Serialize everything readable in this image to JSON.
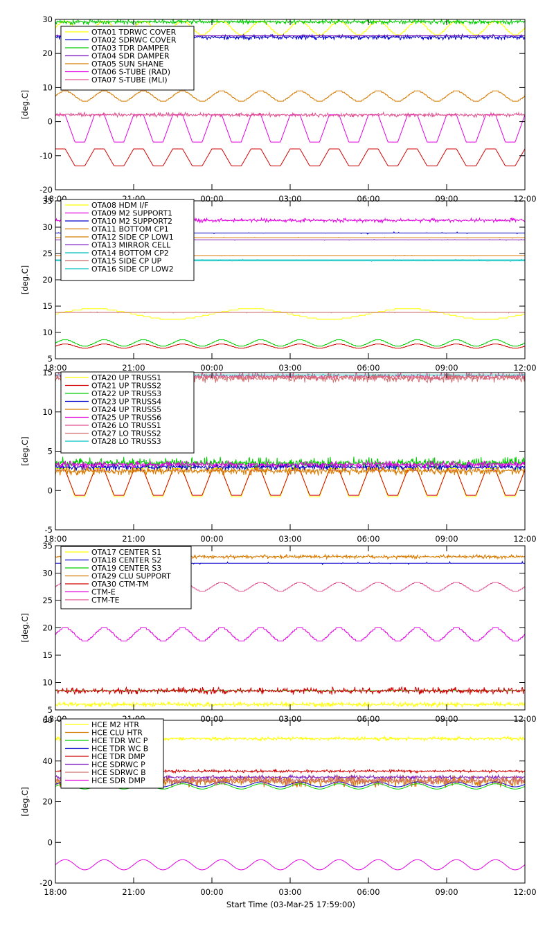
{
  "figure": {
    "xlabel": "Start Time (03-Mar-25 17:59:00)"
  },
  "colors": {
    "yellow": "#ffff00",
    "red": "#d00000",
    "green": "#00cc00",
    "blue": "#0000cc",
    "orange": "#d87a00",
    "magenta": "#e000e0",
    "pink": "#e05090",
    "purple": "#8020c0",
    "cyan": "#00c0c0",
    "salmon": "#d07070"
  },
  "chart_data": [
    {
      "type": "line",
      "ylabel": "[deg.C]",
      "ylim": [
        -20,
        30
      ],
      "yticks": [
        -20,
        -10,
        0,
        10,
        20,
        30
      ],
      "xticks": [
        "18:00",
        "21:00",
        "00:00",
        "03:00",
        "06:00",
        "09:00",
        "12:00"
      ],
      "xrange_hours": [
        0,
        18
      ],
      "legend_position": "top-left",
      "series": [
        {
          "name": "OTA01 TDRWC COVER",
          "color": "yellow",
          "base": 27.5,
          "amp": 2.0,
          "period": 1.5,
          "shape": "steps"
        },
        {
          "name": "OTA02 SDRWC COVER",
          "color": "blue",
          "base": 24.8,
          "amp": 0.8,
          "period": 0.7,
          "shape": "noise"
        },
        {
          "name": "OTA03 TDR DAMPER",
          "color": "green",
          "base": 29.3,
          "amp": 0.8,
          "period": 0.3,
          "shape": "noise"
        },
        {
          "name": "OTA04 SDR DAMPER",
          "color": "purple",
          "base": 25.2,
          "amp": 0.3,
          "period": 1.0,
          "shape": "flat"
        },
        {
          "name": "OTA05 SUN SHANE",
          "color": "orange",
          "base": 7.5,
          "amp": 1.5,
          "period": 1.5,
          "shape": "steps"
        },
        {
          "name": "OTA06 S-TUBE (RAD)",
          "color": "magenta",
          "base": -2.0,
          "amp": 4.0,
          "period": 1.5,
          "shape": "trap"
        },
        {
          "name": "OTA07 S-TUBE (MLI)",
          "color": "pink",
          "base": 2.0,
          "amp": 0.7,
          "period": 1.5,
          "shape": "noise"
        },
        {
          "name": "",
          "color": "red",
          "base": -10.5,
          "amp": 2.5,
          "period": 1.5,
          "shape": "trap"
        }
      ]
    },
    {
      "type": "line",
      "ylabel": "[deg.C]",
      "ylim": [
        5,
        35
      ],
      "yticks": [
        5,
        10,
        15,
        20,
        25,
        30,
        35
      ],
      "xticks": [
        "18:00",
        "21:00",
        "00:00",
        "03:00",
        "06:00",
        "09:00",
        "12:00"
      ],
      "xrange_hours": [
        0,
        18
      ],
      "legend_position": "top-left",
      "series": [
        {
          "name": "OTA08 HDM I/F",
          "color": "yellow",
          "base": 13.5,
          "amp": 1.0,
          "period": 6.0,
          "shape": "steps"
        },
        {
          "name": "OTA09 M2 SUPPORT1",
          "color": "magenta",
          "base": 31.3,
          "amp": 0.4,
          "period": 0.5,
          "shape": "noise"
        },
        {
          "name": "OTA10 M2 SUPPORT2",
          "color": "blue",
          "base": 28.9,
          "amp": 0.2,
          "period": 1.0,
          "shape": "flat"
        },
        {
          "name": "OTA11 BOTTOM CP1",
          "color": "orange",
          "base": 28.0,
          "amp": 0.1,
          "period": 1.0,
          "shape": "flat"
        },
        {
          "name": "OTA12 SIDE CP LOW1",
          "color": "orange",
          "base": 24.6,
          "amp": 0.1,
          "period": 1.0,
          "shape": "flat"
        },
        {
          "name": "OTA13 MIRROR CELL",
          "color": "purple",
          "base": 27.6,
          "amp": 0.1,
          "period": 1.0,
          "shape": "flat"
        },
        {
          "name": "OTA14 BOTTOM CP2",
          "color": "cyan",
          "base": 23.6,
          "amp": 0.1,
          "period": 1.0,
          "shape": "flat"
        },
        {
          "name": "OTA15 SIDE CP UP",
          "color": "salmon",
          "base": 13.8,
          "amp": 0.1,
          "period": 1.0,
          "shape": "flat"
        },
        {
          "name": "OTA16 SIDE CP LOW2",
          "color": "cyan",
          "base": 23.8,
          "amp": 0.1,
          "period": 1.0,
          "shape": "flat"
        },
        {
          "name": "",
          "color": "green",
          "base": 8.0,
          "amp": 0.6,
          "period": 1.5,
          "shape": "steps"
        },
        {
          "name": "",
          "color": "red",
          "base": 7.4,
          "amp": 0.4,
          "period": 1.5,
          "shape": "steps"
        }
      ]
    },
    {
      "type": "line",
      "ylabel": "[deg.C]",
      "ylim": [
        -5,
        15
      ],
      "yticks": [
        -5,
        0,
        5,
        10,
        15
      ],
      "xticks": [
        "18:00",
        "21:00",
        "00:00",
        "03:00",
        "06:00",
        "09:00",
        "12:00"
      ],
      "xrange_hours": [
        0,
        18
      ],
      "legend_position": "top-left",
      "series": [
        {
          "name": "OTA20 UP TRUSS1",
          "color": "yellow",
          "base": 1.0,
          "amp": 1.8,
          "period": 1.5,
          "shape": "trap"
        },
        {
          "name": "OTA21 UP TRUSS2",
          "color": "red",
          "base": 1.0,
          "amp": 1.6,
          "period": 1.5,
          "shape": "trap"
        },
        {
          "name": "OTA22 UP TRUSS3",
          "color": "green",
          "base": 3.5,
          "amp": 0.8,
          "period": 0.5,
          "shape": "noise"
        },
        {
          "name": "OTA23 UP TRUSS4",
          "color": "blue",
          "base": 3.0,
          "amp": 0.5,
          "period": 0.5,
          "shape": "noise"
        },
        {
          "name": "OTA24 UP TRUSS5",
          "color": "orange",
          "base": 2.5,
          "amp": 0.6,
          "period": 0.5,
          "shape": "noise"
        },
        {
          "name": "OTA25 UP TRUSS6",
          "color": "magenta",
          "base": 3.3,
          "amp": 0.5,
          "period": 0.3,
          "shape": "noise"
        },
        {
          "name": "OTA26 LO TRUSS1",
          "color": "pink",
          "base": 14.5,
          "amp": 0.5,
          "period": 0.4,
          "shape": "noise"
        },
        {
          "name": "OTA27 LO TRUSS2",
          "color": "salmon",
          "base": 14.3,
          "amp": 0.6,
          "period": 0.3,
          "shape": "noise"
        },
        {
          "name": "OTA28 LO TRUSS3",
          "color": "cyan",
          "base": 14.7,
          "amp": 0.1,
          "period": 1.0,
          "shape": "flat"
        }
      ]
    },
    {
      "type": "line",
      "ylabel": "[deg.C]",
      "ylim": [
        5,
        35
      ],
      "yticks": [
        5,
        10,
        15,
        20,
        25,
        30,
        35
      ],
      "xticks": [
        "18:00",
        "21:00",
        "00:00",
        "03:00",
        "06:00",
        "09:00",
        "12:00"
      ],
      "xrange_hours": [
        0,
        18
      ],
      "legend_position": "top-left",
      "series": [
        {
          "name": "OTA17 CENTER S1",
          "color": "yellow",
          "base": 6.0,
          "amp": 0.5,
          "period": 0.8,
          "shape": "noise"
        },
        {
          "name": "OTA18 CENTER S2",
          "color": "blue",
          "base": 31.8,
          "amp": 0.3,
          "period": 1.0,
          "shape": "flat"
        },
        {
          "name": "OTA19 CENTER S3",
          "color": "green",
          "base": 8.5,
          "amp": 0.1,
          "period": 1.0,
          "shape": "flat"
        },
        {
          "name": "OTA29 CLU SUPPORT",
          "color": "orange",
          "base": 33.0,
          "amp": 0.4,
          "period": 1.0,
          "shape": "noise"
        },
        {
          "name": "OTA30 CTM-TM",
          "color": "red",
          "base": 8.5,
          "amp": 0.7,
          "period": 0.8,
          "shape": "noise"
        },
        {
          "name": "CTM-E",
          "color": "magenta",
          "base": 18.8,
          "amp": 1.2,
          "period": 1.5,
          "shape": "steps"
        },
        {
          "name": "CTM-TE",
          "color": "pink",
          "base": 27.5,
          "amp": 0.8,
          "period": 1.5,
          "shape": "steps"
        }
      ]
    },
    {
      "type": "line",
      "ylabel": "[deg.C]",
      "ylim": [
        -20,
        60
      ],
      "yticks": [
        -20,
        0,
        20,
        40,
        60
      ],
      "xticks": [
        "18:00",
        "21:00",
        "00:00",
        "03:00",
        "06:00",
        "09:00",
        "12:00"
      ],
      "xrange_hours": [
        0,
        18
      ],
      "legend_position": "top-left",
      "series": [
        {
          "name": "HCE M2 HTR",
          "color": "yellow",
          "base": 51.0,
          "amp": 1.0,
          "period": 0.1,
          "shape": "noise"
        },
        {
          "name": "HCE CLU HTR",
          "color": "orange",
          "base": 30.0,
          "amp": 3.0,
          "period": 0.05,
          "shape": "noise"
        },
        {
          "name": "HCE TDR WC P",
          "color": "green",
          "base": 27.5,
          "amp": 1.3,
          "period": 1.5,
          "shape": "sine"
        },
        {
          "name": "HCE TDR WC B",
          "color": "blue",
          "base": 28.5,
          "amp": 1.2,
          "period": 1.5,
          "shape": "sine"
        },
        {
          "name": "HCE TDR DMP",
          "color": "red",
          "base": 35.0,
          "amp": 0.8,
          "period": 0.08,
          "shape": "noise"
        },
        {
          "name": "HCE SDRWC P",
          "color": "purple",
          "base": 32.0,
          "amp": 1.0,
          "period": 0.1,
          "shape": "noise"
        },
        {
          "name": "HCE SDRWC B",
          "color": "salmon",
          "base": 30.5,
          "amp": 2.5,
          "period": 0.05,
          "shape": "noise"
        },
        {
          "name": "HCE SDR DMP",
          "color": "magenta",
          "base": -11.0,
          "amp": 2.5,
          "period": 1.5,
          "shape": "sine"
        }
      ]
    }
  ]
}
